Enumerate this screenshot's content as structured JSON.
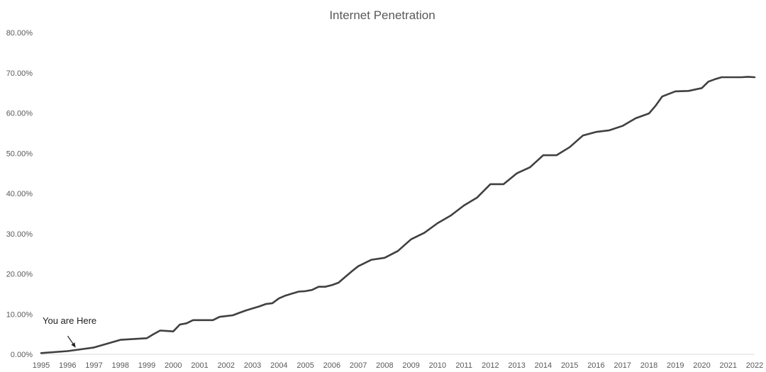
{
  "chart_data": {
    "type": "line",
    "title": "Internet Penetration",
    "xlabel": "",
    "ylabel": "",
    "x_ticks": [
      "1995",
      "1996",
      "1997",
      "1998",
      "1999",
      "2000",
      "2001",
      "2002",
      "2003",
      "2004",
      "2005",
      "2006",
      "2007",
      "2008",
      "2009",
      "2010",
      "2011",
      "2012",
      "2013",
      "2014",
      "2015",
      "2016",
      "2017",
      "2018",
      "2019",
      "2020",
      "2021",
      "2022"
    ],
    "y_ticks": [
      0,
      10,
      20,
      30,
      40,
      50,
      60,
      70,
      80
    ],
    "y_tick_labels": [
      "0.00%",
      "10.00%",
      "20.00%",
      "30.00%",
      "40.00%",
      "50.00%",
      "60.00%",
      "70.00%",
      "80.00%"
    ],
    "xlim": [
      1995,
      2022
    ],
    "ylim": [
      0,
      80
    ],
    "grid": false,
    "legend": "none",
    "line_color": "#404040",
    "series": [
      {
        "x": [
          1995,
          1996,
          1997,
          1998,
          1999,
          1999.25,
          1999.5,
          1999.75,
          2000,
          2000.25,
          2000.5,
          2000.75,
          2001,
          2001.5,
          2001.75,
          2002,
          2002.25,
          2002.5,
          2002.75,
          2003,
          2003.25,
          2003.5,
          2003.75,
          2004,
          2004.25,
          2004.5,
          2004.75,
          2005,
          2005.25,
          2005.5,
          2005.75,
          2006,
          2006.25,
          2006.5,
          2006.75,
          2007,
          2007.5,
          2008,
          2008.5,
          2009,
          2009.5,
          2010,
          2010.5,
          2011,
          2011.5,
          2012,
          2012.5,
          2013,
          2013.5,
          2014,
          2014.5,
          2015,
          2015.5,
          2016,
          2016.5,
          2017,
          2017.5,
          2018,
          2018.25,
          2018.5,
          2019,
          2019.5,
          2020,
          2020.25,
          2020.5,
          2020.75,
          2021,
          2021.5,
          2021.75,
          2022
        ],
        "y": [
          0.3,
          0.8,
          1.7,
          3.6,
          4.0,
          5.0,
          5.9,
          5.8,
          5.7,
          7.4,
          7.7,
          8.5,
          8.5,
          8.5,
          9.3,
          9.5,
          9.7,
          10.3,
          10.9,
          11.4,
          11.9,
          12.5,
          12.7,
          13.9,
          14.6,
          15.1,
          15.6,
          15.7,
          16.0,
          16.8,
          16.8,
          17.2,
          17.8,
          19.2,
          20.6,
          21.9,
          23.5,
          24.0,
          25.7,
          28.6,
          30.2,
          32.6,
          34.5,
          37.0,
          39.0,
          42.3,
          42.3,
          45.0,
          46.5,
          49.5,
          49.5,
          51.5,
          54.4,
          55.3,
          55.7,
          56.8,
          58.7,
          59.9,
          61.8,
          64.1,
          65.4,
          65.5,
          66.2,
          67.8,
          68.4,
          68.9,
          68.9,
          68.9,
          69.0,
          68.9
        ]
      }
    ],
    "annotations": [
      {
        "text": "You are Here",
        "arrow_to": [
          1996.3,
          1.2
        ]
      }
    ]
  }
}
